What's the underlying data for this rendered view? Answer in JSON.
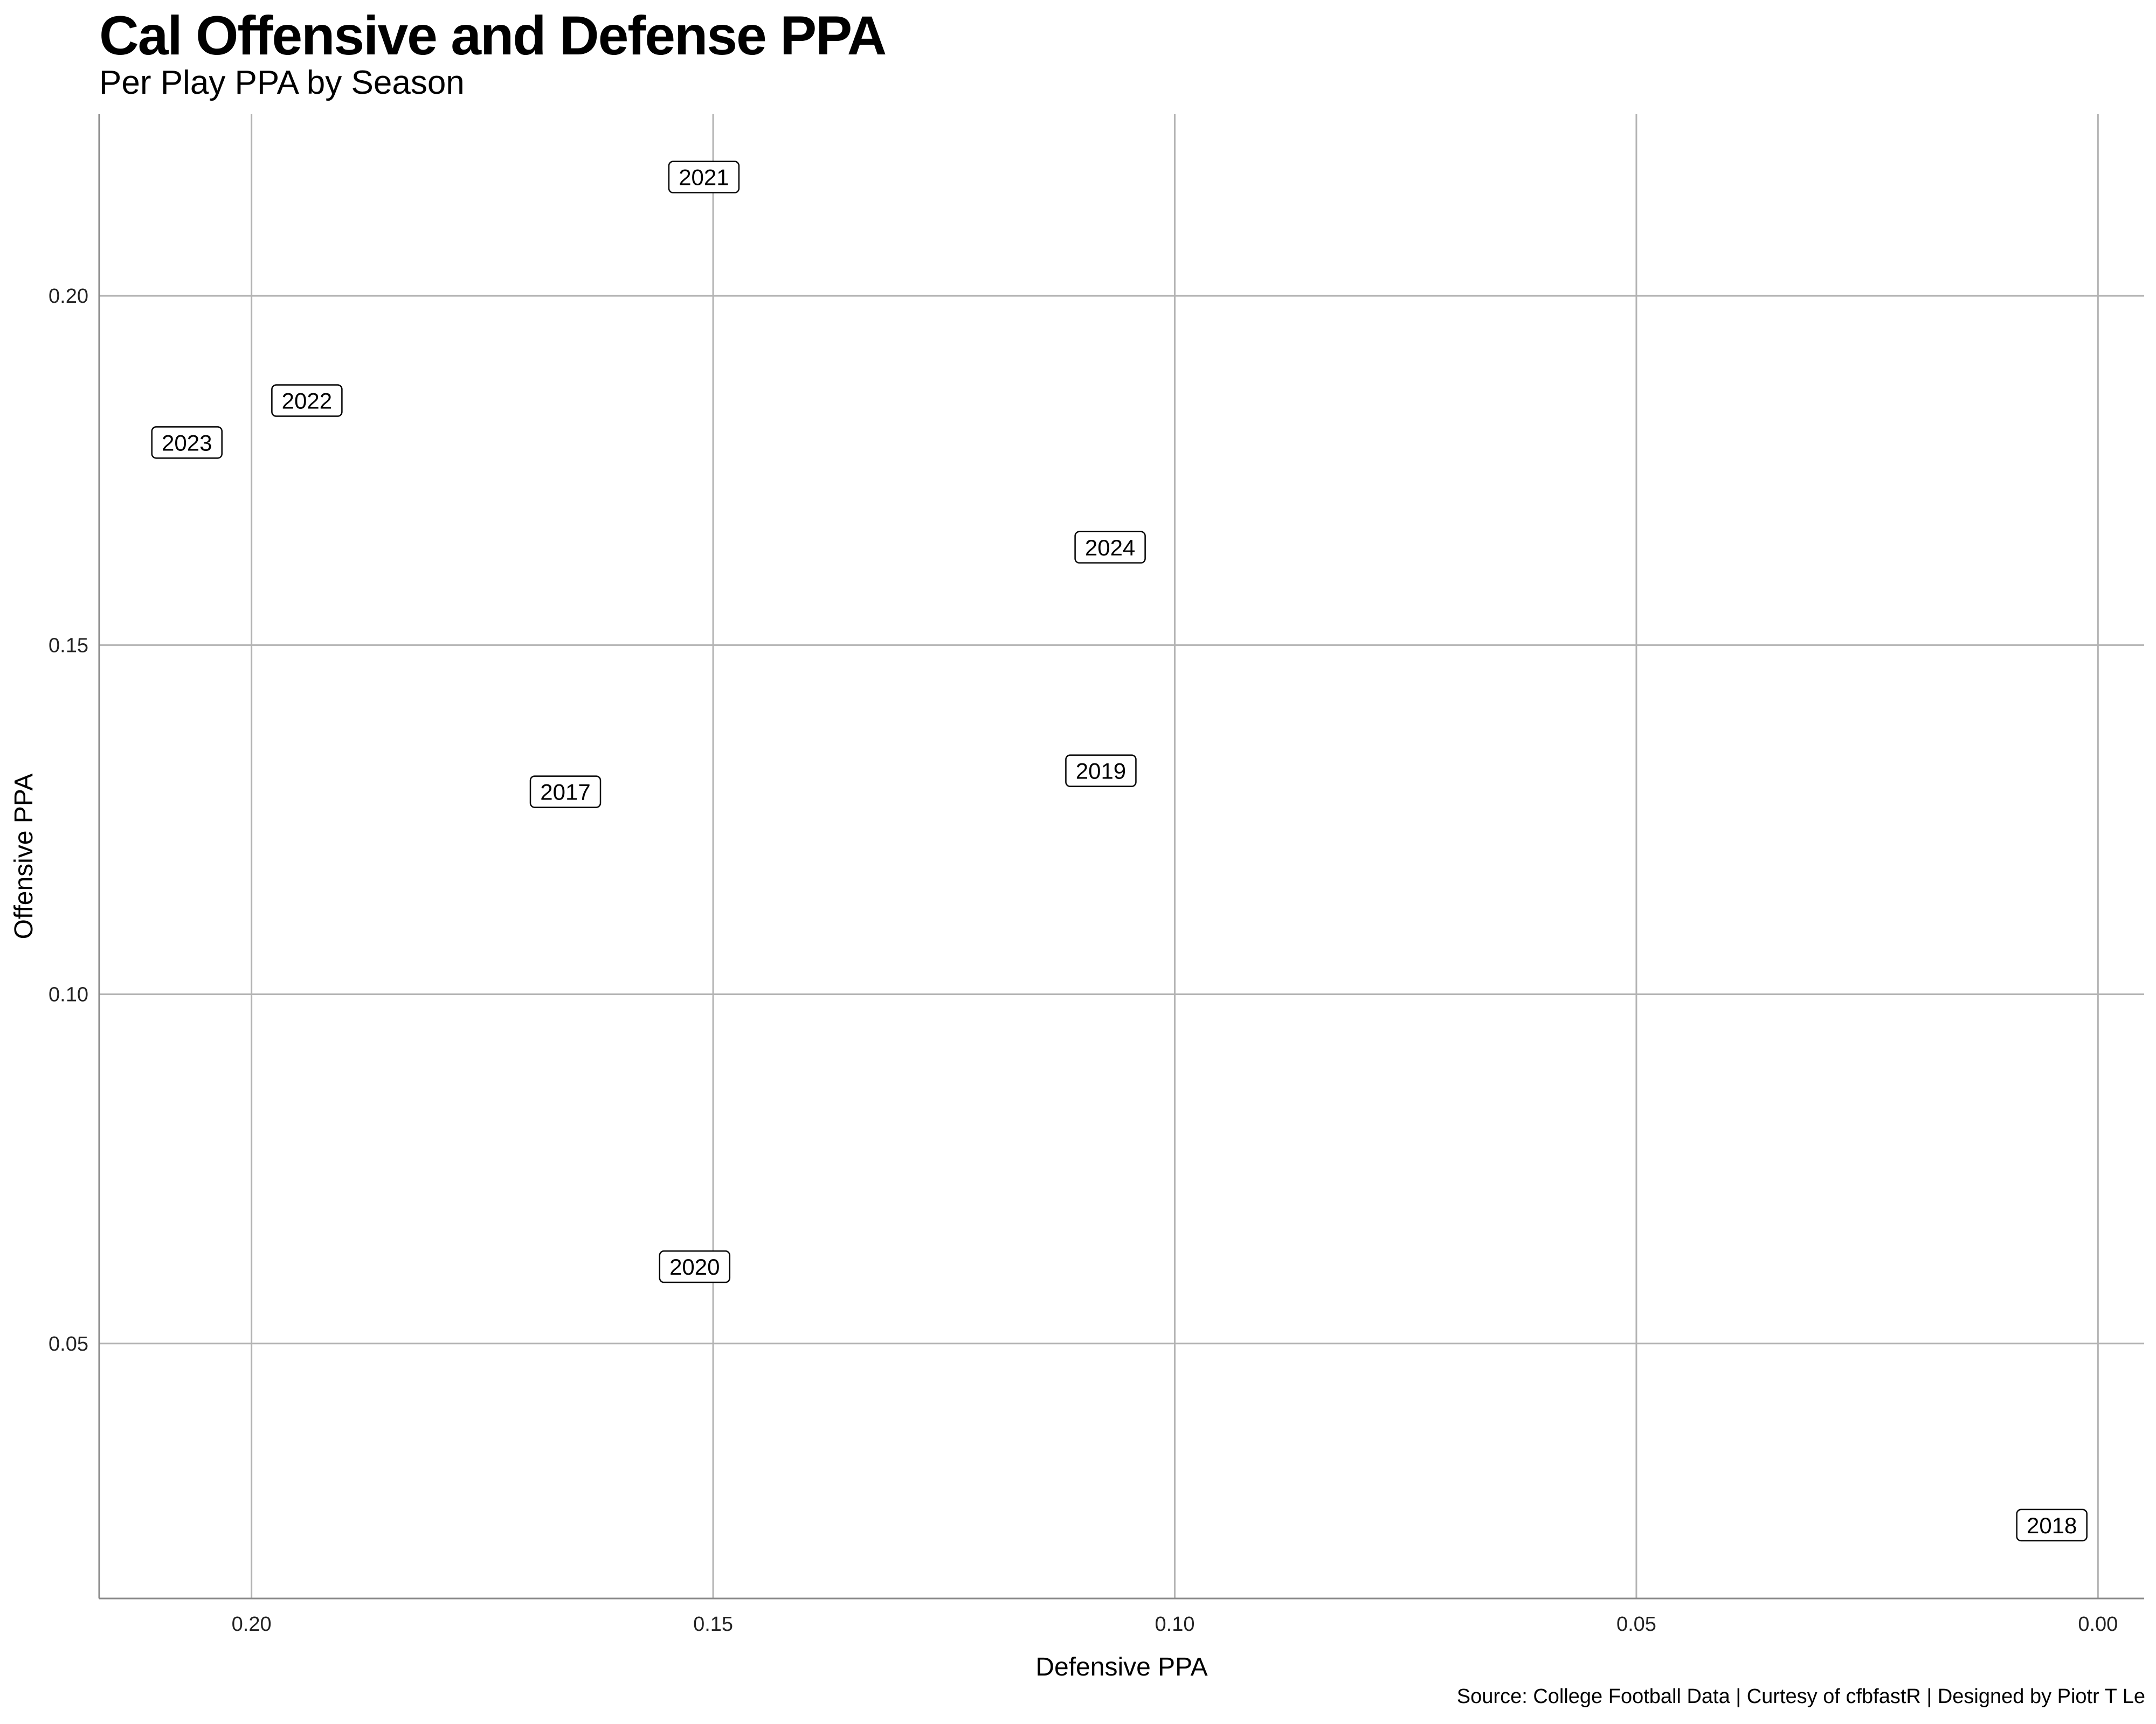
{
  "chart_data": {
    "type": "scatter",
    "title": "Cal Offensive and Defense PPA",
    "subtitle": "Per Play PPA by Season",
    "caption": "Source: College Football Data | Curtesy of cfbfastR | Designed by Piotr T Le",
    "xlabel": "Defensive PPA",
    "ylabel": "Offensive PPA",
    "x_reversed": true,
    "xlim": [
      0.2165,
      -0.005
    ],
    "ylim": [
      0.0135,
      0.226
    ],
    "x_ticks": [
      0.2,
      0.15,
      0.1,
      0.05,
      0.0
    ],
    "x_tick_labels": [
      "0.20",
      "0.15",
      "0.10",
      "0.05",
      "0.00"
    ],
    "y_ticks": [
      0.05,
      0.1,
      0.15,
      0.2
    ],
    "y_tick_labels": [
      "0.05",
      "0.10",
      "0.15",
      "0.20"
    ],
    "grid": true,
    "points": [
      {
        "label": "2017",
        "x": 0.166,
        "y": 0.129
      },
      {
        "label": "2018",
        "x": 0.005,
        "y": 0.024
      },
      {
        "label": "2019",
        "x": 0.108,
        "y": 0.132
      },
      {
        "label": "2020",
        "x": 0.152,
        "y": 0.061
      },
      {
        "label": "2021",
        "x": 0.151,
        "y": 0.217
      },
      {
        "label": "2022",
        "x": 0.194,
        "y": 0.185
      },
      {
        "label": "2023",
        "x": 0.207,
        "y": 0.179
      },
      {
        "label": "2024",
        "x": 0.107,
        "y": 0.164
      }
    ]
  }
}
